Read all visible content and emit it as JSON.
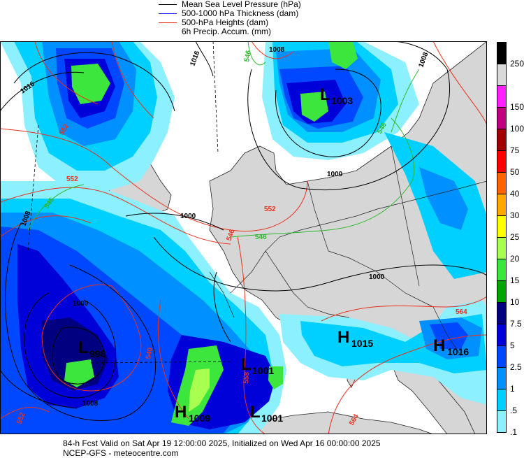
{
  "legend": {
    "items": [
      {
        "label": "Mean Sea Level Pressure (hPa)",
        "color": "#000000"
      },
      {
        "label": "500-1000 hPa Thickness (dam)",
        "color": "#1a1aff"
      },
      {
        "label": "500-hPa Heights (dam)",
        "color": "#e8321e"
      },
      {
        "label": "6h Precip. Accum. (mm)",
        "color": ""
      }
    ]
  },
  "colorbar": {
    "levels": [
      {
        "label": "250",
        "color": "#000000"
      },
      {
        "label": "",
        "color": "#d9d9d9"
      },
      {
        "label": "150",
        "color": "#ff1fff"
      },
      {
        "label": "100",
        "color": "#c0007f"
      },
      {
        "label": "75",
        "color": "#a00000"
      },
      {
        "label": "50",
        "color": "#ff0000"
      },
      {
        "label": "40",
        "color": "#ff6400"
      },
      {
        "label": "30",
        "color": "#ffa800"
      },
      {
        "label": "25",
        "color": "#ffff00"
      },
      {
        "label": "20",
        "color": "#a8ff50"
      },
      {
        "label": "15",
        "color": "#3ce63c"
      },
      {
        "label": "10",
        "color": "#00a500"
      },
      {
        "label": "7.5",
        "color": "#000080"
      },
      {
        "label": "5",
        "color": "#0000d8"
      },
      {
        "label": "2.5",
        "color": "#0048ff"
      },
      {
        "label": "1",
        "color": "#0090ff"
      },
      {
        "label": ".5",
        "color": "#00d0ff"
      },
      {
        "label": ".1",
        "color": "#8cf0ff"
      }
    ]
  },
  "map": {
    "colors": {
      "ocean": "#ffffff",
      "land": "#d6d6d6",
      "mslp": "#000000",
      "heights": "#e8321e",
      "thickness_green": "#2fb82f"
    },
    "systems": [
      {
        "letter": "L",
        "value": "1003"
      },
      {
        "letter": "L",
        "value": "998"
      },
      {
        "letter": "L",
        "value": "1001"
      },
      {
        "letter": "L",
        "value": "1001"
      },
      {
        "letter": "H",
        "value": "1015"
      },
      {
        "letter": "H",
        "value": "1016"
      },
      {
        "letter": "H",
        "value": "1009"
      }
    ],
    "isobar_labels": [
      "1016",
      "1016",
      "1008",
      "1008",
      "1000",
      "1000",
      "1000",
      "1000",
      "1008",
      "1008"
    ],
    "height_labels": [
      "552",
      "552",
      "552",
      "546",
      "540",
      "564",
      "558",
      "552",
      "564"
    ],
    "thickness_labels": [
      "546",
      "546",
      "546",
      "546"
    ]
  },
  "footer": {
    "line1": "84-h Fcst Valid on Sat Apr 19 12:00:00 2025, Initialized on Wed Apr 16 00:00:00 2025",
    "line2": "NCEP-GFS  - meteocentre.com"
  }
}
